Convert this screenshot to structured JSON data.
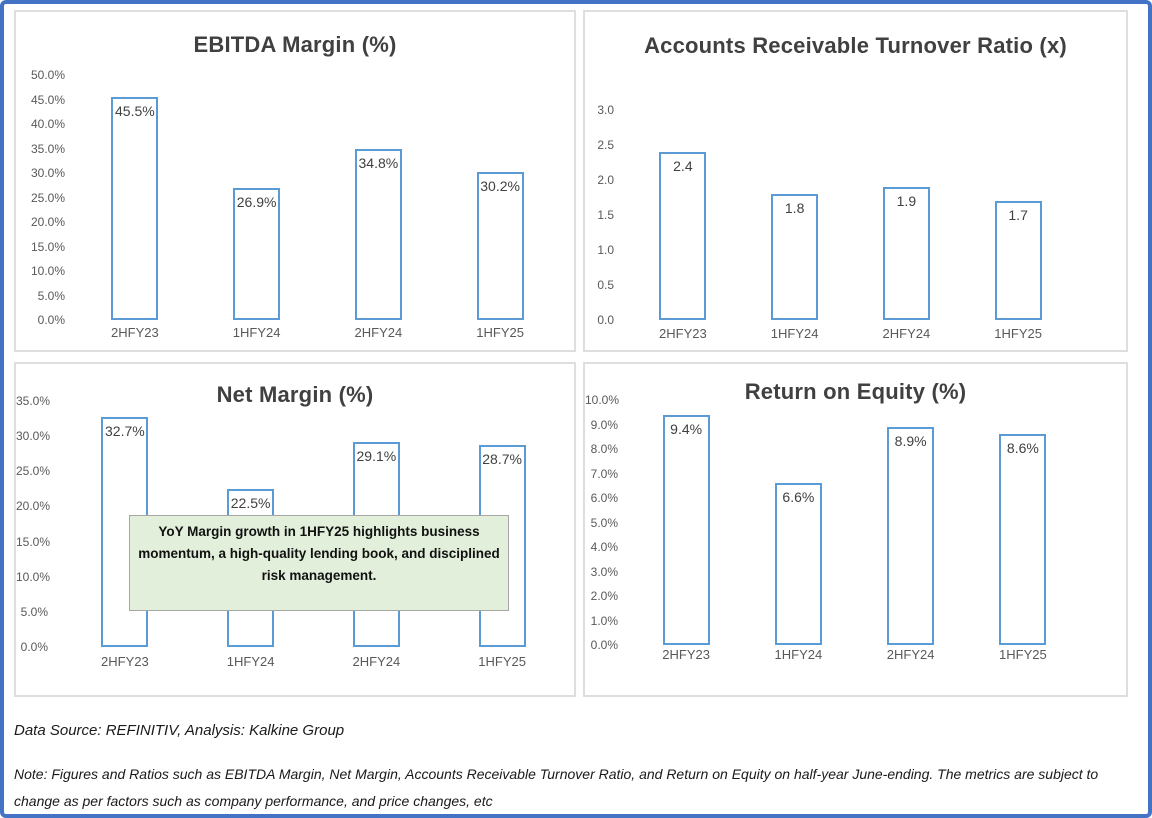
{
  "footer": {
    "source": "Data Source: REFINITIV, Analysis: Kalkine Group",
    "note": "Note: Figures and Ratios such as EBITDA Margin, Net Margin, Accounts Receivable Turnover Ratio, and Return on Equity on half-year June-ending. The metrics are subject to change as per factors such as company performance, and price changes, etc"
  },
  "colors": {
    "bar_outline": "#5B9BD5",
    "bar_fill": "#FFFFFF",
    "outer_border": "#4472C4",
    "panel_border": "#DEDEDE",
    "axis_text": "#595959",
    "title_text": "#404040",
    "data_label_text": "#404040",
    "annotation_fill": "#E2EFDA",
    "annotation_border": "#A6A6A6",
    "footer_text": "#1A1A1A"
  },
  "chart_data": [
    {
      "type": "bar",
      "title": "EBITDA Margin (%)",
      "categories": [
        "2HFY23",
        "1HFY24",
        "2HFY24",
        "1HFY25"
      ],
      "values": [
        45.5,
        26.9,
        34.8,
        30.2
      ],
      "data_labels": [
        "45.5%",
        "26.9%",
        "34.8%",
        "30.2%"
      ],
      "y_ticks": [
        "50.0%",
        "45.0%",
        "40.0%",
        "35.0%",
        "30.0%",
        "25.0%",
        "20.0%",
        "15.0%",
        "10.0%",
        "5.0%",
        "0.0%"
      ],
      "ylim": [
        0,
        50
      ],
      "xlabel": "",
      "ylabel": "",
      "grid": false,
      "legend": false
    },
    {
      "type": "bar",
      "title": "Accounts Receivable Turnover Ratio (x)",
      "categories": [
        "2HFY23",
        "1HFY24",
        "2HFY24",
        "1HFY25"
      ],
      "values": [
        2.4,
        1.8,
        1.9,
        1.7
      ],
      "data_labels": [
        "2.4",
        "1.8",
        "1.9",
        "1.7"
      ],
      "y_ticks": [
        "3.0",
        "2.5",
        "2.0",
        "1.5",
        "1.0",
        "0.5",
        "0.0"
      ],
      "ylim": [
        0,
        3
      ],
      "xlabel": "",
      "ylabel": "",
      "grid": false,
      "legend": false
    },
    {
      "type": "bar",
      "title": "Net Margin (%)",
      "categories": [
        "2HFY23",
        "1HFY24",
        "2HFY24",
        "1HFY25"
      ],
      "values": [
        32.7,
        22.5,
        29.1,
        28.7
      ],
      "data_labels": [
        "32.7%",
        "22.5%",
        "29.1%",
        "28.7%"
      ],
      "y_ticks": [
        "35.0%",
        "30.0%",
        "25.0%",
        "20.0%",
        "15.0%",
        "10.0%",
        "5.0%",
        "0.0%"
      ],
      "ylim": [
        0,
        35
      ],
      "xlabel": "",
      "ylabel": "",
      "grid": false,
      "legend": false,
      "annotation": "YoY Margin growth in 1HFY25 highlights business momentum, a high-quality lending book, and disciplined risk management."
    },
    {
      "type": "bar",
      "title": "Return on Equity (%)",
      "categories": [
        "2HFY23",
        "1HFY24",
        "2HFY24",
        "1HFY25"
      ],
      "values": [
        9.4,
        6.6,
        8.9,
        8.6
      ],
      "data_labels": [
        "9.4%",
        "6.6%",
        "8.9%",
        "8.6%"
      ],
      "y_ticks": [
        "10.0%",
        "9.0%",
        "8.0%",
        "7.0%",
        "6.0%",
        "5.0%",
        "4.0%",
        "3.0%",
        "2.0%",
        "1.0%",
        "0.0%"
      ],
      "ylim": [
        0,
        10
      ],
      "xlabel": "",
      "ylabel": "",
      "grid": false,
      "legend": false
    }
  ]
}
